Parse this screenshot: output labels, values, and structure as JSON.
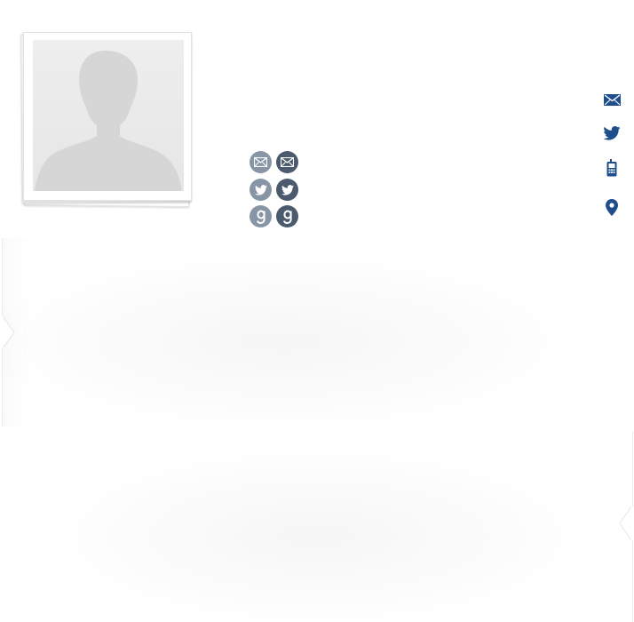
{
  "profile": {
    "avatar_icon": "person-silhouette-icon"
  },
  "social": {
    "items": [
      {
        "name": "email",
        "icon": "envelope-icon",
        "variant": "light"
      },
      {
        "name": "email",
        "icon": "envelope-icon",
        "variant": "dark"
      },
      {
        "name": "twitter",
        "icon": "twitter-bird-icon",
        "variant": "light"
      },
      {
        "name": "twitter",
        "icon": "twitter-bird-icon",
        "variant": "dark"
      },
      {
        "name": "goodreads",
        "icon": "goodreads-g-icon",
        "variant": "light"
      },
      {
        "name": "goodreads",
        "icon": "goodreads-g-icon",
        "variant": "dark"
      }
    ],
    "colors": {
      "light": "#8795a5",
      "dark": "#4b5a6d"
    }
  },
  "contact": {
    "icons": [
      "envelope-icon",
      "twitter-bird-icon",
      "mobile-phone-icon",
      "map-pin-icon"
    ],
    "color": "#1f4e8c"
  }
}
